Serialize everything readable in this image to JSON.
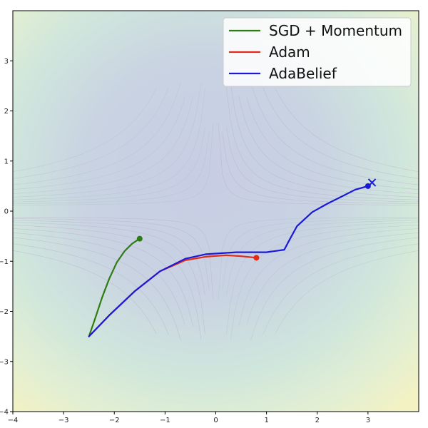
{
  "chart_data": {
    "type": "line",
    "title": "",
    "xlabel": "",
    "ylabel": "",
    "xlim": [
      -4,
      4
    ],
    "ylim": [
      -4,
      4
    ],
    "xticks": [
      -4,
      -3,
      -2,
      -1,
      0,
      1,
      2,
      3
    ],
    "yticks": [
      -4,
      -3,
      -2,
      -1,
      0,
      1,
      2,
      3
    ],
    "grid": false,
    "legend_position": "top-right",
    "background": "contour map of loss surface (saddle near origin)",
    "target_marker": {
      "symbol": "X",
      "x": 3.08,
      "y": 0.57,
      "color": "#1f1fd6"
    },
    "series": [
      {
        "name": "SGD + Momentum",
        "color": "#2e7d12",
        "points": [
          [
            -2.5,
            -2.5
          ],
          [
            -2.38,
            -2.15
          ],
          [
            -2.24,
            -1.72
          ],
          [
            -2.1,
            -1.35
          ],
          [
            -1.95,
            -1.02
          ],
          [
            -1.8,
            -0.8
          ],
          [
            -1.65,
            -0.65
          ],
          [
            -1.5,
            -0.55
          ]
        ],
        "end": [
          -1.5,
          -0.55
        ]
      },
      {
        "name": "Adam",
        "color": "#e02a1a",
        "points": [
          [
            -2.5,
            -2.5
          ],
          [
            -2.1,
            -2.08
          ],
          [
            -1.6,
            -1.6
          ],
          [
            -1.1,
            -1.2
          ],
          [
            -0.6,
            -0.98
          ],
          [
            -0.2,
            -0.91
          ],
          [
            0.2,
            -0.88
          ],
          [
            0.5,
            -0.9
          ],
          [
            0.8,
            -0.93
          ]
        ],
        "end": [
          0.8,
          -0.93
        ]
      },
      {
        "name": "AdaBelief",
        "color": "#1a1ad6",
        "points": [
          [
            -2.5,
            -2.5
          ],
          [
            -2.1,
            -2.08
          ],
          [
            -1.6,
            -1.6
          ],
          [
            -1.1,
            -1.2
          ],
          [
            -0.6,
            -0.95
          ],
          [
            -0.2,
            -0.86
          ],
          [
            0.4,
            -0.82
          ],
          [
            1.0,
            -0.82
          ],
          [
            1.35,
            -0.77
          ],
          [
            1.45,
            -0.58
          ],
          [
            1.6,
            -0.3
          ],
          [
            1.9,
            -0.02
          ],
          [
            2.2,
            0.15
          ],
          [
            2.5,
            0.3
          ],
          [
            2.75,
            0.43
          ],
          [
            3.0,
            0.5
          ]
        ],
        "end": [
          3.0,
          0.5
        ]
      }
    ],
    "colors": {
      "bg_yellow": "#f4f2c2",
      "bg_teal": "#cde7da",
      "bg_blue": "#c9d0e3",
      "bg_pink": "#d8c6dc"
    }
  }
}
